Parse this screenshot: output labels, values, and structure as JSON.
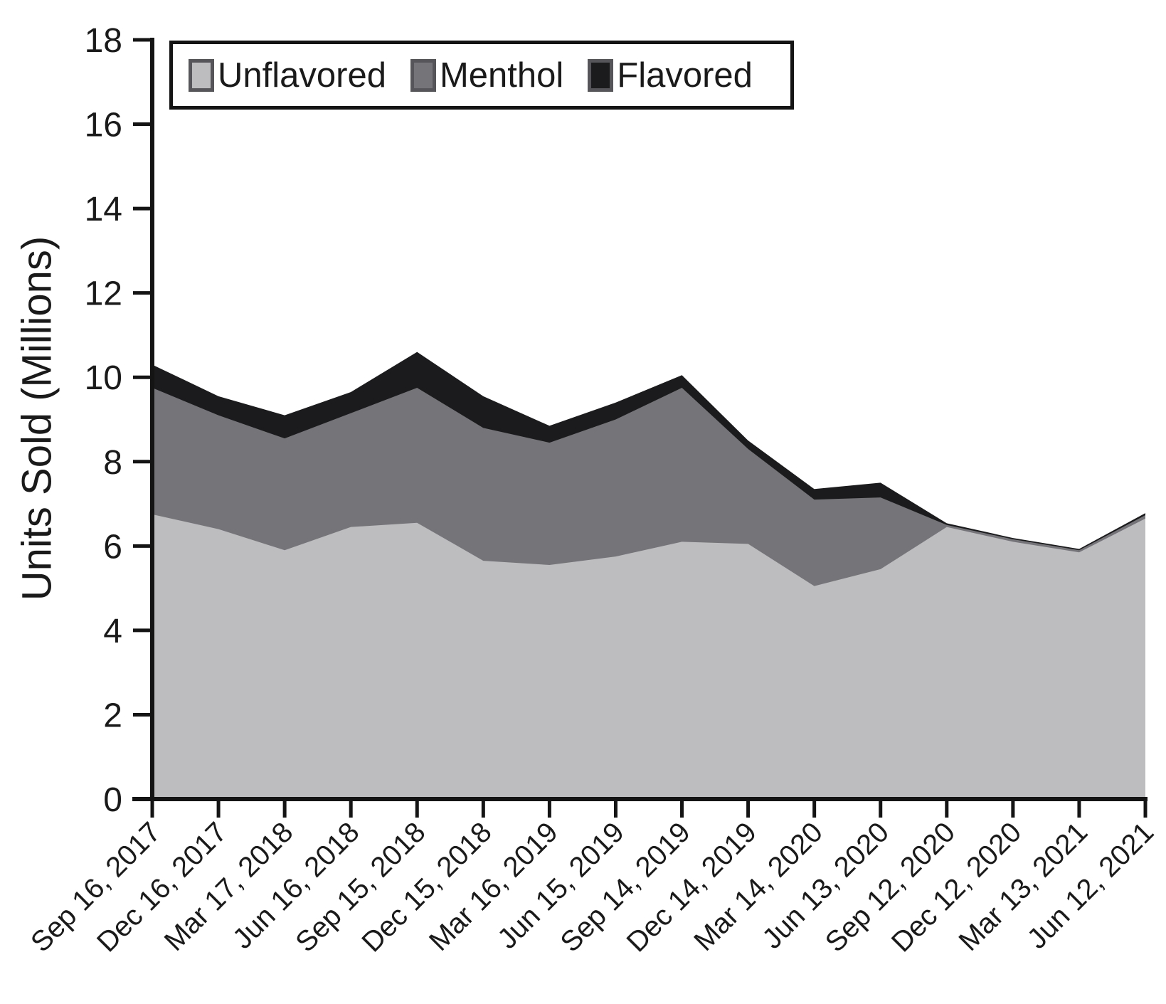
{
  "figure": {
    "y_axis_title": "Units Sold (Millions)",
    "legend": {
      "items": [
        {
          "label": "Unflavored",
          "color": "#bdbdc0"
        },
        {
          "label": "Menthol",
          "color": "#757579"
        },
        {
          "label": "Flavored",
          "color": "#1b1b1d"
        }
      ]
    },
    "colors": {
      "axis": "#141414",
      "text": "#1a1a1a",
      "background": "#ffffff"
    }
  },
  "chart_data": {
    "type": "area",
    "stacked": true,
    "title": "",
    "xlabel": "",
    "ylabel": "Units Sold (Millions)",
    "ylim": [
      0,
      18
    ],
    "y_ticks": [
      0,
      2,
      4,
      6,
      8,
      10,
      12,
      14,
      16,
      18
    ],
    "grid": false,
    "legend_position": "top-left-inside",
    "categories": [
      "Sep 16, 2017",
      "Dec 16, 2017",
      "Mar 17, 2018",
      "Jun 16, 2018",
      "Sep 15, 2018",
      "Dec 15, 2018",
      "Mar 16, 2019",
      "Jun 15, 2019",
      "Sep 14, 2019",
      "Dec 14, 2019",
      "Mar 14, 2020",
      "Jun 13, 2020",
      "Sep 12, 2020",
      "Dec 12, 2020",
      "Mar 13, 2021",
      "Jun 12, 2021"
    ],
    "series": [
      {
        "name": "Unflavored",
        "color": "#bdbdc0",
        "values": [
          6.75,
          6.4,
          5.9,
          6.45,
          6.55,
          5.65,
          5.55,
          5.75,
          6.1,
          6.05,
          5.05,
          5.45,
          6.45,
          6.1,
          5.85,
          6.65
        ]
      },
      {
        "name": "Menthol",
        "color": "#757579",
        "values": [
          3.0,
          2.7,
          2.65,
          2.7,
          3.2,
          3.15,
          2.9,
          3.25,
          3.65,
          2.25,
          2.05,
          1.7,
          0.05,
          0.06,
          0.05,
          0.08
        ]
      },
      {
        "name": "Flavored",
        "color": "#1b1b1d",
        "values": [
          0.55,
          0.45,
          0.55,
          0.5,
          0.85,
          0.75,
          0.4,
          0.4,
          0.3,
          0.2,
          0.25,
          0.35,
          0.04,
          0.03,
          0.03,
          0.05
        ]
      }
    ]
  }
}
